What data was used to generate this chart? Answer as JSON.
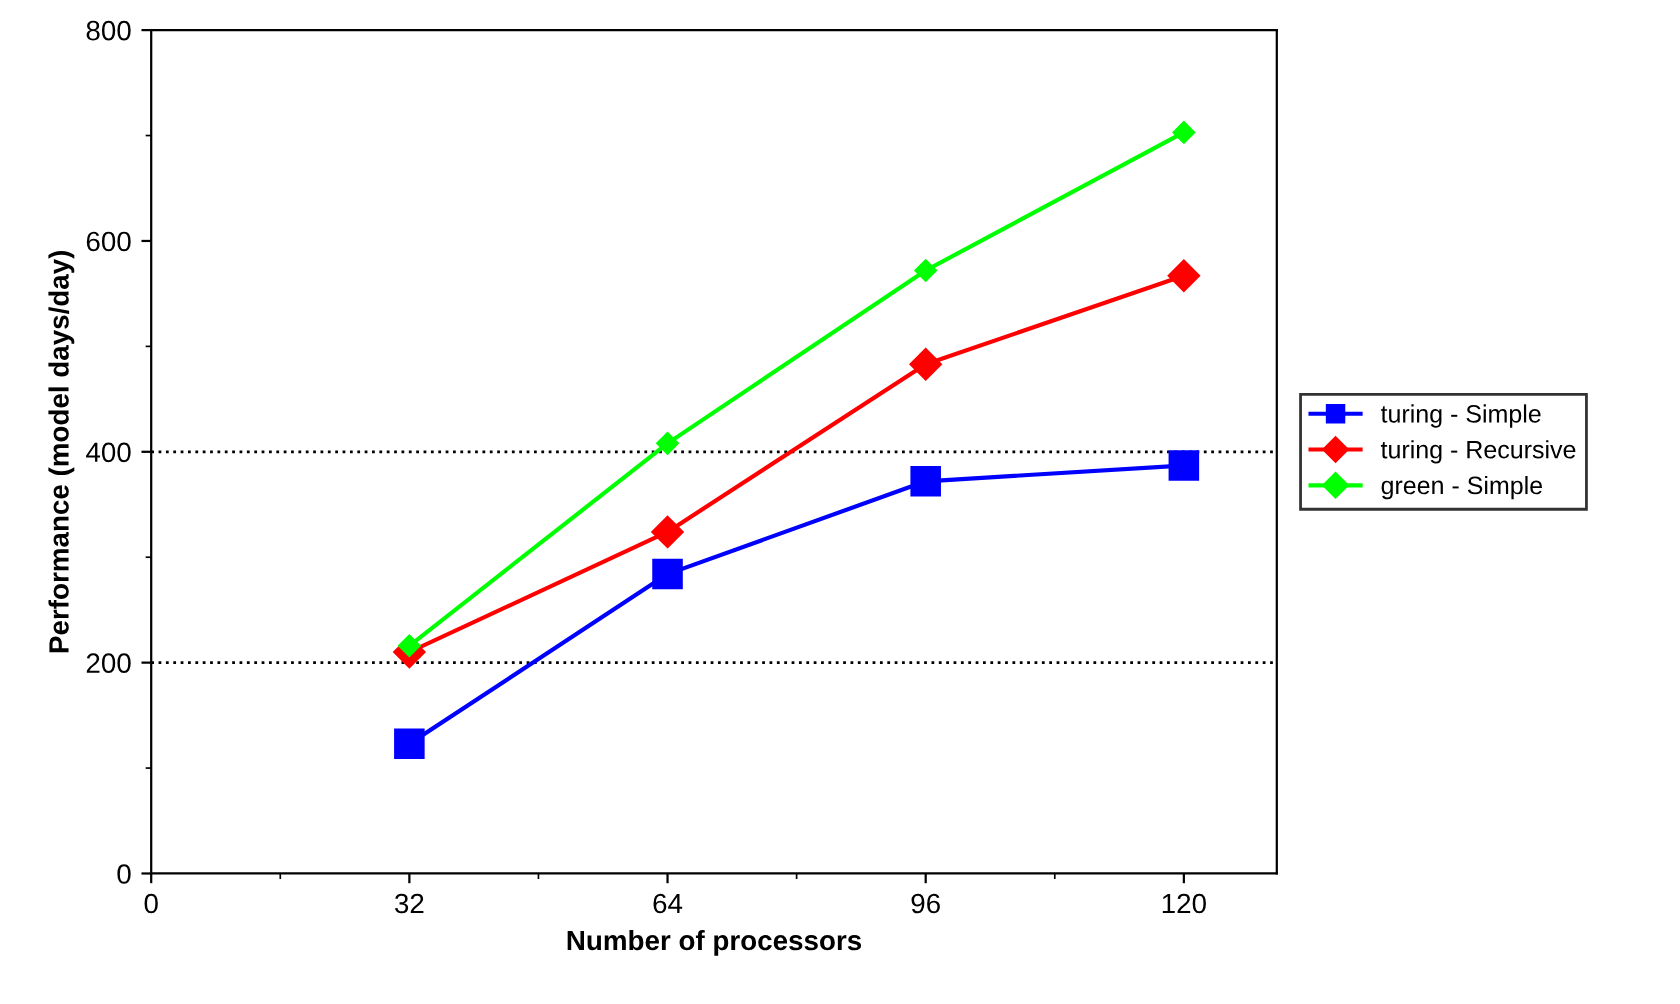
{
  "chart_data": {
    "type": "line",
    "xlabel": "Number of processors",
    "ylabel": "Performance (model days/day)",
    "categories": [
      "0",
      "32",
      "64",
      "96",
      "120"
    ],
    "series": [
      {
        "name": "turing - Simple",
        "color": "#0000ff",
        "marker": "square",
        "values": [
          null,
          123,
          284,
          372,
          387
        ]
      },
      {
        "name": "turing - Recursive",
        "color": "#ff0000",
        "marker": "diamond",
        "values": [
          null,
          210,
          324,
          483,
          567
        ]
      },
      {
        "name": "green - Simple",
        "color": "#00ff00",
        "marker": "diamond",
        "values": [
          null,
          216,
          408,
          572,
          703
        ]
      }
    ],
    "ylim": [
      0,
      800
    ],
    "yticks": [
      0,
      200,
      400,
      600,
      800
    ],
    "ref_lines": [
      {
        "axis": "y",
        "value": 200,
        "line_style": "dotted",
        "color": "#000000"
      },
      {
        "axis": "y",
        "value": 400,
        "line_style": "dotted",
        "color": "#000000"
      }
    ],
    "grid": false,
    "legend": "right",
    "line_style": "solid"
  }
}
